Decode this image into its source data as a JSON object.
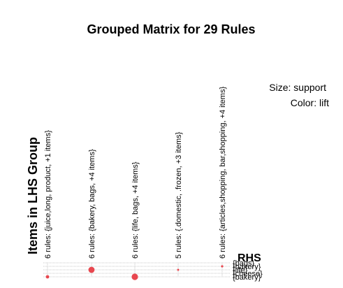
{
  "chart_data": {
    "type": "scatter",
    "title": "Grouped Matrix for 29 Rules",
    "legend": {
      "size_label": "Size: support",
      "color_label": "Color: lift"
    },
    "ylabel": "Items in LHS Group",
    "rhs_title": "RHS",
    "lhs_groups": [
      "6 rules: {juice,long, product, +1 items}",
      "6 rules: {bakery, bags, +4 items}",
      "6 rules: {life, bags, +4 items}",
      "5 rules: {.domestic, .frozen, +3 items}",
      "6 rules: {articles,shopping, bar,shopping, +4 items}"
    ],
    "rhs_items": [
      "{bags}",
      "{bakery}",
      "{life}",
      "{cheese}",
      "{bakery}"
    ],
    "points": [
      {
        "group": 0,
        "rhs": 4,
        "support": 0.35
      },
      {
        "group": 1,
        "rhs": 2,
        "support": 0.85
      },
      {
        "group": 2,
        "rhs": 4,
        "support": 0.9
      },
      {
        "group": 3,
        "rhs": 2,
        "support": 0.12
      },
      {
        "group": 4,
        "rhs": 1,
        "support": 0.15
      }
    ],
    "colors": {
      "point": "#e8474f",
      "grid": "#c8c8c8"
    }
  }
}
